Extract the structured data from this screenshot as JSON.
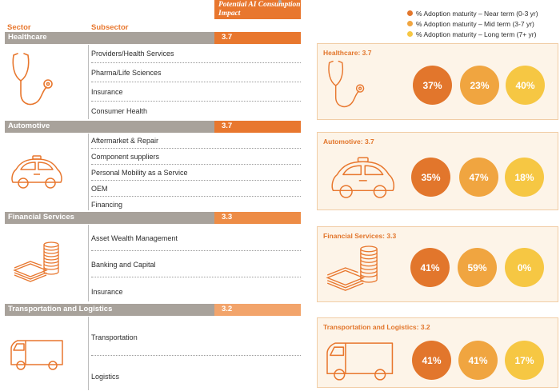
{
  "header": {
    "impact_col": "Potential AI Consumption Impact",
    "sector_col": "Sector",
    "subsector_col": "Subsector"
  },
  "legend": [
    {
      "label": "% Adoption maturity – Near term (0-3 yr)",
      "color": "#e2762c"
    },
    {
      "label": "% Adoption maturity – Mid term (3-7 yr)",
      "color": "#f0a540"
    },
    {
      "label": "% Adoption maturity – Long term (7+ yr)",
      "color": "#f6c743"
    }
  ],
  "colors": {
    "accent": "#e8772e",
    "bar_grey": "#a8a29b",
    "near": "#e2762c",
    "mid": "#f0a540",
    "long": "#f6c743",
    "card_bg": "#fdf4e8"
  },
  "sectors": [
    {
      "name": "Healthcare",
      "score": "3.7",
      "icon": "stethoscope-icon",
      "subsectors": [
        "Providers/Health Services",
        "Pharma/Life Sciences",
        "Insurance",
        "Consumer Health"
      ],
      "card_title": "Healthcare: 3.7",
      "near": "37%",
      "mid": "23%",
      "long": "40%"
    },
    {
      "name": "Automotive",
      "score": "3.7",
      "icon": "car-icon",
      "subsectors": [
        "Aftermarket & Repair",
        "Component suppliers",
        "Personal Mobility as a Service",
        "OEM",
        "Financing"
      ],
      "card_title": "Automotive: 3.7",
      "near": "35%",
      "mid": "47%",
      "long": "18%"
    },
    {
      "name": "Financial Services",
      "score": "3.3",
      "icon": "money-stack-icon",
      "subsectors": [
        "Asset Wealth Management",
        "Banking and Capital",
        "Insurance"
      ],
      "card_title": "Financial Services: 3.3",
      "near": "41%",
      "mid": "59%",
      "long": "0%"
    },
    {
      "name": "Transportation and Logistics",
      "score": "3.2",
      "icon": "van-icon",
      "subsectors": [
        "Transportation",
        "Logistics"
      ],
      "card_title": "Transportation and Logistics: 3.2",
      "near": "41%",
      "mid": "41%",
      "long": "17%"
    }
  ]
}
